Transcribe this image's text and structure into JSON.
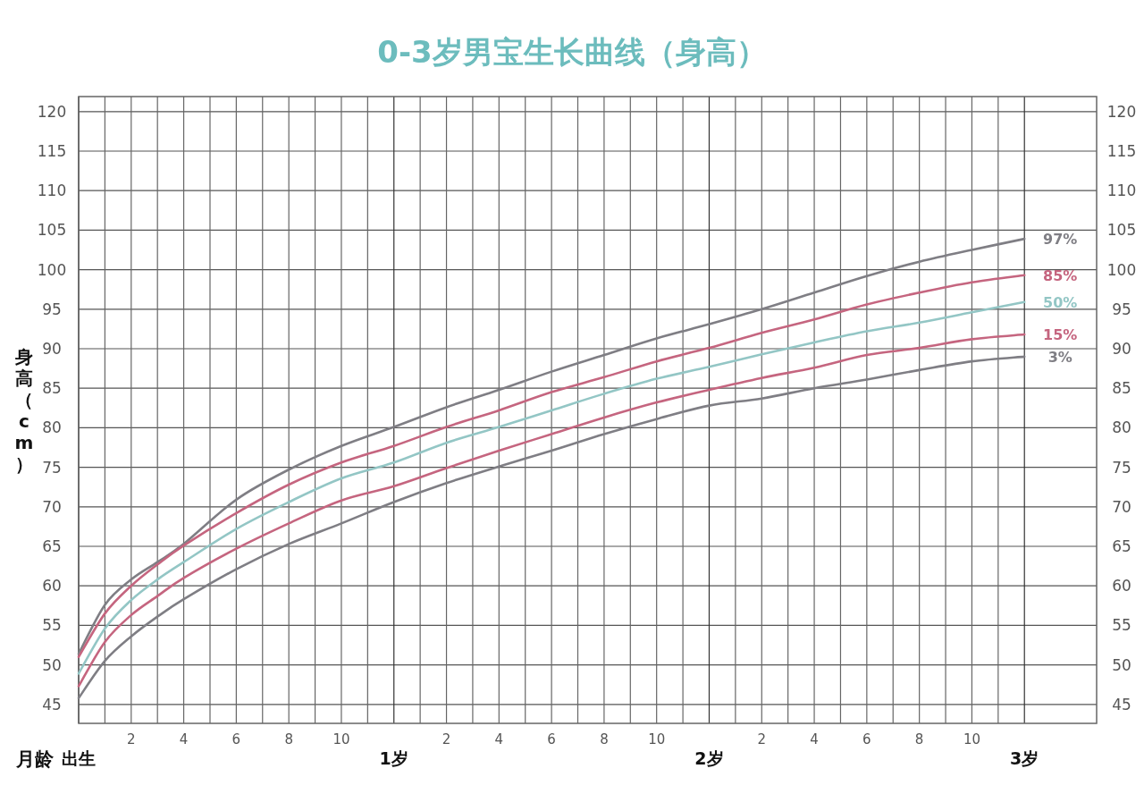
{
  "chart_data": {
    "type": "line",
    "title": "0-3岁男宝生长曲线（身高）",
    "xlabel": "月龄",
    "ylabel": "身高（cm）",
    "x": [
      0,
      0.0833,
      0.1667,
      0.25,
      0.3333,
      0.5,
      0.6667,
      0.8333,
      1,
      1.1667,
      1.3333,
      1.5,
      1.6667,
      1.8333,
      2,
      2.1667,
      2.3333,
      2.5,
      2.6667,
      2.8333,
      3
    ],
    "series": [
      {
        "name": "97%",
        "color": "#7f7e84",
        "values": [
          51.4,
          57.6,
          60.8,
          63.0,
          65.3,
          70.9,
          74.7,
          77.7,
          80.1,
          82.6,
          84.8,
          87.1,
          89.2,
          91.3,
          93.1,
          95.0,
          97.1,
          99.2,
          101.0,
          102.5,
          103.9
        ]
      },
      {
        "name": "85%",
        "color": "#c5657f",
        "values": [
          51.0,
          56.5,
          60.0,
          62.7,
          65.1,
          69.2,
          72.8,
          75.6,
          77.7,
          80.1,
          82.2,
          84.5,
          86.4,
          88.4,
          90.1,
          92.0,
          93.7,
          95.6,
          97.1,
          98.4,
          99.3
        ]
      },
      {
        "name": "50%",
        "color": "#93c6c5",
        "values": [
          48.9,
          54.6,
          58.2,
          60.8,
          63.0,
          67.2,
          70.6,
          73.6,
          75.6,
          78.1,
          80.1,
          82.2,
          84.3,
          86.2,
          87.7,
          89.3,
          90.8,
          92.2,
          93.3,
          94.6,
          95.9
        ]
      },
      {
        "name": "15%",
        "color": "#c5657f",
        "values": [
          47.3,
          52.9,
          56.3,
          58.7,
          61.0,
          64.7,
          67.9,
          70.8,
          72.6,
          74.9,
          77.1,
          79.2,
          81.3,
          83.2,
          84.8,
          86.3,
          87.6,
          89.2,
          90.1,
          91.2,
          91.8
        ]
      },
      {
        "name": "3%",
        "color": "#7f7e84",
        "values": [
          45.8,
          50.5,
          53.6,
          56.1,
          58.3,
          62.1,
          65.3,
          67.9,
          70.6,
          73.0,
          75.1,
          77.1,
          79.2,
          81.1,
          82.8,
          83.7,
          85.0,
          86.1,
          87.3,
          88.4,
          89.0
        ]
      }
    ],
    "xlim": [
      0,
      3.229
    ],
    "xticks": [
      {
        "value": 0,
        "label": "出生"
      },
      {
        "value": 0.0833,
        "label": null
      },
      {
        "value": 0.1667,
        "label": null
      },
      {
        "value": 0.25,
        "label": null
      },
      {
        "value": 0.3333,
        "label": null
      },
      {
        "value": 0.4167,
        "label": null
      },
      {
        "value": 0.5,
        "label": null
      },
      {
        "value": 0.5833,
        "label": null
      },
      {
        "value": 0.6667,
        "label": null
      },
      {
        "value": 0.75,
        "label": null
      },
      {
        "value": 0.8333,
        "label": null
      },
      {
        "value": 0.9167,
        "label": null
      },
      {
        "value": 1,
        "label": "1岁"
      },
      {
        "value": 1.0833,
        "label": null
      },
      {
        "value": 1.1667,
        "label": null
      },
      {
        "value": 1.25,
        "label": null
      },
      {
        "value": 1.3333,
        "label": null
      },
      {
        "value": 1.4167,
        "label": null
      },
      {
        "value": 1.5,
        "label": null
      },
      {
        "value": 1.5833,
        "label": null
      },
      {
        "value": 1.6667,
        "label": null
      },
      {
        "value": 1.75,
        "label": null
      },
      {
        "value": 1.8333,
        "label": null
      },
      {
        "value": 1.9167,
        "label": null
      },
      {
        "value": 2,
        "label": "2岁"
      },
      {
        "value": 2.0833,
        "label": null
      },
      {
        "value": 2.1667,
        "label": null
      },
      {
        "value": 2.25,
        "label": null
      },
      {
        "value": 2.3333,
        "label": null
      },
      {
        "value": 2.4167,
        "label": null
      },
      {
        "value": 2.5,
        "label": null
      },
      {
        "value": 2.5833,
        "label": null
      },
      {
        "value": 2.6667,
        "label": null
      },
      {
        "value": 2.75,
        "label": null
      },
      {
        "value": 2.8333,
        "label": null
      },
      {
        "value": 2.9167,
        "label": null
      },
      {
        "value": 3,
        "label": "3岁"
      }
    ],
    "annotations": [
      "2",
      "4",
      "6",
      "8",
      "10",
      "2",
      "4",
      "6",
      "8",
      "10",
      "2",
      "4",
      "6",
      "8",
      "10"
    ],
    "ylim": [
      42.6,
      121.9
    ],
    "yticks": [
      45,
      50,
      55,
      60,
      65,
      70,
      75,
      80,
      85,
      90,
      95,
      100,
      105,
      110,
      115,
      120
    ],
    "y2lim": [
      42.6,
      121.9
    ],
    "y2ticks": [
      45,
      50,
      55,
      60,
      65,
      70,
      75,
      80,
      85,
      90,
      95,
      100,
      105,
      110,
      115,
      120
    ],
    "grid": true
  }
}
